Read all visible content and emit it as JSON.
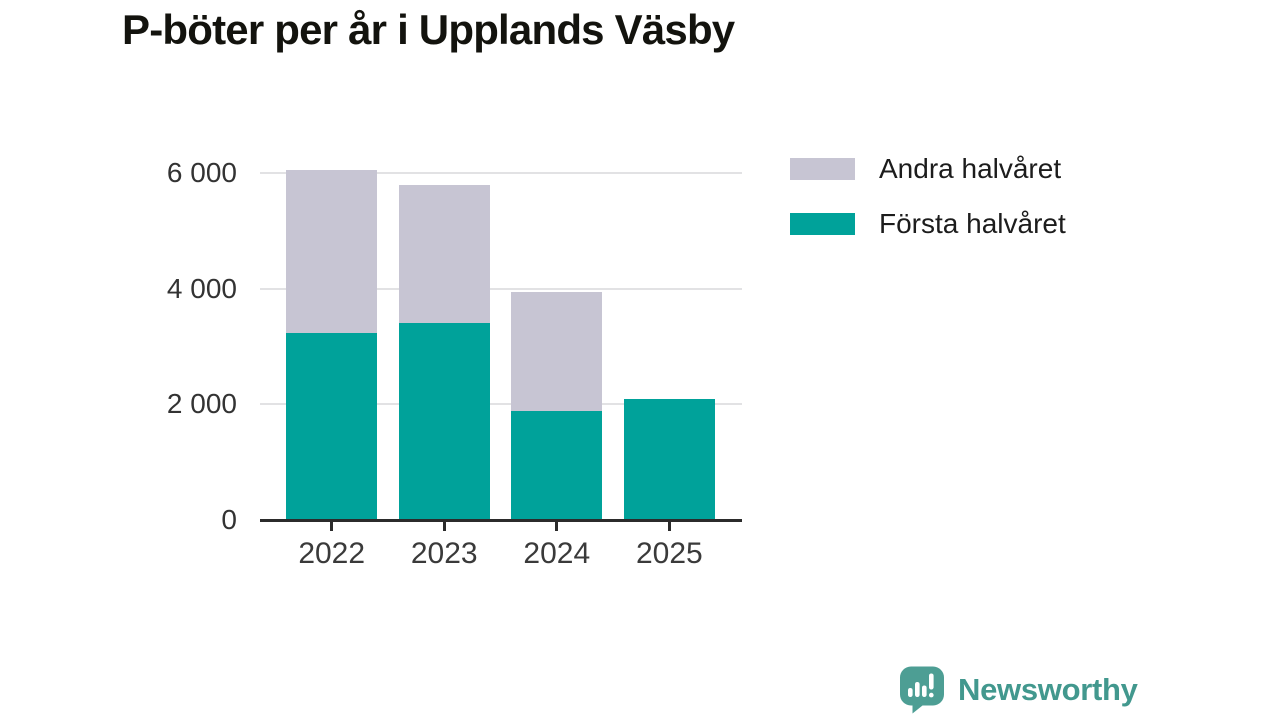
{
  "title": "P-böter per år i Upplands Väsby",
  "chart_data": {
    "type": "bar",
    "stacked": true,
    "title": "P-böter per år i Upplands Väsby",
    "categories": [
      "2022",
      "2023",
      "2024",
      "2025"
    ],
    "series": [
      {
        "name": "Första halvåret",
        "color": "#00a29a",
        "values": [
          3230,
          3400,
          1890,
          2100
        ]
      },
      {
        "name": "Andra halvåret",
        "color": "#c7c5d3",
        "values": [
          2830,
          2400,
          2050,
          0
        ]
      }
    ],
    "totals": [
      6060,
      5800,
      3940,
      2100
    ],
    "xlabel": "",
    "ylabel": "",
    "ylim": [
      0,
      6000
    ],
    "yticks": [
      0,
      2000,
      4000,
      6000
    ],
    "ytick_labels": [
      "0",
      "2 000",
      "4 000",
      "6 000"
    ],
    "grid": "horizontal",
    "legend_position": "top-right"
  },
  "legend": {
    "items": [
      {
        "label": "Andra halvåret",
        "color": "#c7c5d3"
      },
      {
        "label": "Första halvåret",
        "color": "#00a29a"
      }
    ]
  },
  "brand": {
    "name": "Newsworthy",
    "icon": "newsworthy-speech-bubble-bar-chart-icon",
    "icon_color": "#4d9e94",
    "text_color": "#42988e"
  },
  "colors": {
    "first_half_teal": "#00a29a",
    "second_half_gray": "#c7c5d3",
    "gridline": "#e2e2e4",
    "axis": "#2b2b2b",
    "tick_text": "#333333",
    "title_text": "#13130e"
  }
}
